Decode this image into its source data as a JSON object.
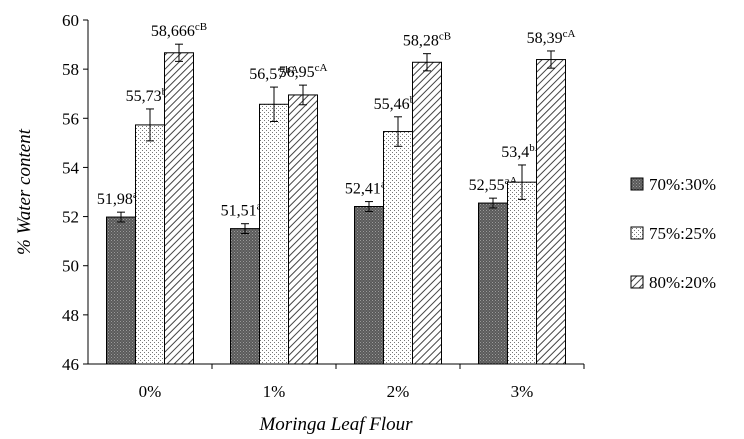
{
  "chart_data": {
    "type": "bar",
    "title": "",
    "xlabel": "Moringa Leaf Flour",
    "ylabel": "% Water content",
    "ylim": [
      46,
      60
    ],
    "yticks": [
      "46",
      "48",
      "50",
      "52",
      "54",
      "56",
      "58",
      "60"
    ],
    "categories": [
      "0%",
      "1%",
      "2%",
      "3%"
    ],
    "series": [
      {
        "name": "70%:30%",
        "values": [
          51.98,
          51.51,
          52.41,
          52.55
        ],
        "errors": [
          0.2,
          0.2,
          0.2,
          0.2
        ],
        "labels": [
          "51,98",
          "51,51",
          "52,41",
          "52,55"
        ],
        "superscripts": [
          "aB",
          "aA",
          "aB",
          "aA"
        ],
        "color": "#6b6b6b",
        "pattern": "dark-dots"
      },
      {
        "name": "75%:25%",
        "values": [
          55.73,
          56.57,
          55.46,
          53.4
        ],
        "errors": [
          0.65,
          0.7,
          0.6,
          0.7
        ],
        "labels": [
          "55,73",
          "56,57",
          "55,46",
          "53,4"
        ],
        "superscripts": [
          "bB",
          "bA",
          "bB",
          "bA"
        ],
        "color": "#f2f2f2",
        "pattern": "light-dots"
      },
      {
        "name": "80%:20%",
        "values": [
          58.666,
          56.95,
          58.28,
          58.39
        ],
        "errors": [
          0.35,
          0.4,
          0.35,
          0.35
        ],
        "labels": [
          "58,666",
          "56,95",
          "58,28",
          "58,39"
        ],
        "superscripts": [
          "cB",
          "cA",
          "cB",
          "cA"
        ],
        "color": "#d9d9d9",
        "pattern": "diagonal-hatch"
      }
    ],
    "grid": false,
    "legend": "right"
  }
}
